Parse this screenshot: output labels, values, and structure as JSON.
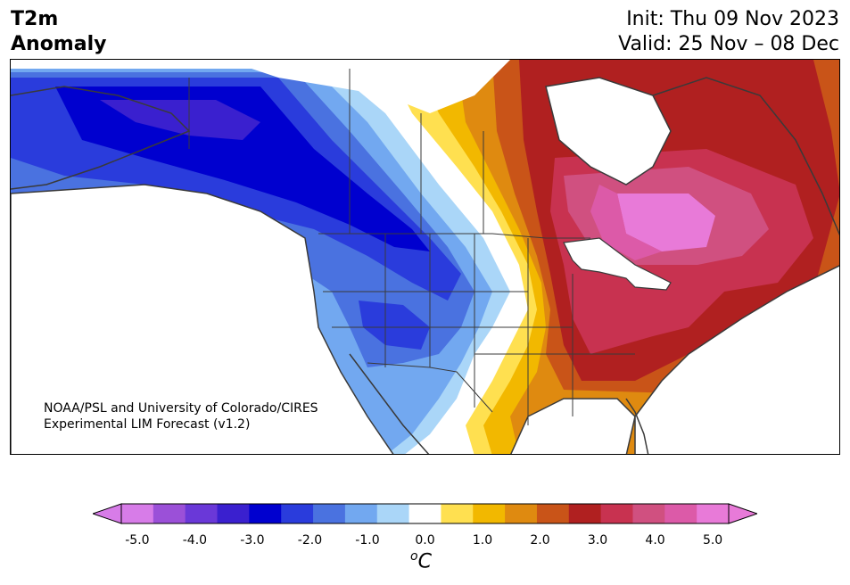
{
  "header": {
    "title_line1": "T2m",
    "title_line2": "Anomaly",
    "init_text": "Init: Thu 09 Nov 2023",
    "valid_text": "Valid: 25 Nov – 08 Dec"
  },
  "credit": {
    "line1": "NOAA/PSL and University of Colorado/CIRES",
    "line2": "Experimental LIM Forecast (v1.2)"
  },
  "colorbar": {
    "unit_superscript": "o",
    "unit_letter": "C",
    "tick_labels": [
      "-5.0",
      "-4.0",
      "-3.0",
      "-2.0",
      "-1.0",
      "0.0",
      "1.0",
      "2.0",
      "3.0",
      "4.0",
      "5.0"
    ],
    "colors": [
      "#d77ce8",
      "#9b50d8",
      "#6a38d8",
      "#3a20cf",
      "#0000cf",
      "#2a3cdc",
      "#4a72e0",
      "#72a8f0",
      "#aad6f8",
      "#ffffff",
      "#ffe050",
      "#f2b800",
      "#df8a10",
      "#c95418",
      "#b02020",
      "#c83250",
      "#d05080",
      "#dc5aa8",
      "#e87ad8"
    ],
    "under_color": "#e27cf0",
    "over_color": "#c040ff"
  }
}
